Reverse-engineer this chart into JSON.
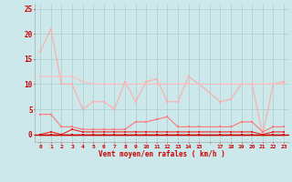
{
  "background_color": "#cce8ea",
  "grid_color": "#aacccc",
  "x_labels": [
    "0",
    "1",
    "2",
    "3",
    "4",
    "5",
    "6",
    "7",
    "8",
    "9",
    "10",
    "11",
    "12",
    "13",
    "14",
    "15",
    "",
    "17",
    "18",
    "19",
    "20",
    "21",
    "22",
    "23"
  ],
  "xlabel": "Vent moyen/en rafales ( km/h )",
  "ylabel_ticks": [
    0,
    5,
    10,
    15,
    20,
    25
  ],
  "xlim": [
    -0.5,
    23.5
  ],
  "ylim": [
    -1.5,
    26
  ],
  "series": [
    {
      "name": "line1_peak",
      "color": "#ffaaaa",
      "linewidth": 0.8,
      "marker": "s",
      "markersize": 1.5,
      "data_x": [
        0,
        1,
        2,
        3,
        4,
        5,
        6,
        7,
        8,
        9,
        10,
        11,
        12,
        13,
        14,
        15,
        17,
        18,
        19,
        20,
        21,
        22,
        23
      ],
      "data_y": [
        16.5,
        21,
        10,
        10,
        5,
        6.5,
        6.5,
        5,
        10.5,
        6.5,
        10.5,
        11,
        6.5,
        6.5,
        11.5,
        10,
        6.5,
        7,
        10,
        10,
        0,
        10,
        10.5
      ]
    },
    {
      "name": "line2_flat",
      "color": "#ffbbbb",
      "linewidth": 0.8,
      "marker": "s",
      "markersize": 1.5,
      "data_x": [
        0,
        1,
        2,
        3,
        4,
        5,
        6,
        7,
        8,
        9,
        10,
        11,
        12,
        13,
        14,
        15,
        17,
        18,
        19,
        20,
        21,
        22,
        23
      ],
      "data_y": [
        11.5,
        11.5,
        11.5,
        11.5,
        10.5,
        10,
        10,
        10,
        10,
        10,
        10,
        10,
        10,
        10,
        10,
        10,
        10,
        10,
        10,
        10,
        10,
        10,
        10
      ]
    },
    {
      "name": "line3_mid",
      "color": "#ff7777",
      "linewidth": 0.8,
      "marker": "s",
      "markersize": 1.5,
      "data_x": [
        0,
        1,
        2,
        3,
        4,
        5,
        6,
        7,
        8,
        9,
        10,
        11,
        12,
        13,
        14,
        15,
        17,
        18,
        19,
        20,
        21,
        22,
        23
      ],
      "data_y": [
        4,
        4,
        1.5,
        1.5,
        1,
        1,
        1,
        1,
        1,
        2.5,
        2.5,
        3,
        3.5,
        1.5,
        1.5,
        1.5,
        1.5,
        1.5,
        2.5,
        2.5,
        0.5,
        1.5,
        1.5
      ]
    },
    {
      "name": "line4_low",
      "color": "#ee2222",
      "linewidth": 0.8,
      "marker": "s",
      "markersize": 1.5,
      "data_x": [
        0,
        1,
        2,
        3,
        4,
        5,
        6,
        7,
        8,
        9,
        10,
        11,
        12,
        13,
        14,
        15,
        17,
        18,
        19,
        20,
        21,
        22,
        23
      ],
      "data_y": [
        0,
        0.5,
        0,
        1,
        0.5,
        0.5,
        0.5,
        0.5,
        0.5,
        0.5,
        0.5,
        0.5,
        0.5,
        0.5,
        0.5,
        0.5,
        0.5,
        0.5,
        0.5,
        0.5,
        0,
        0.5,
        0.5
      ]
    },
    {
      "name": "line5_zero",
      "color": "#cc0000",
      "linewidth": 1.0,
      "marker": "s",
      "markersize": 1.5,
      "data_x": [
        0,
        1,
        2,
        3,
        4,
        5,
        6,
        7,
        8,
        9,
        10,
        11,
        12,
        13,
        14,
        15,
        17,
        18,
        19,
        20,
        21,
        22,
        23
      ],
      "data_y": [
        0,
        0,
        0,
        0,
        0,
        0,
        0,
        0,
        0,
        0,
        0,
        0,
        0,
        0,
        0,
        0,
        0,
        0,
        0,
        0,
        0,
        0,
        0
      ]
    }
  ],
  "hline_color": "#cc0000",
  "hline_y": 0,
  "hline_linewidth": 1.0
}
